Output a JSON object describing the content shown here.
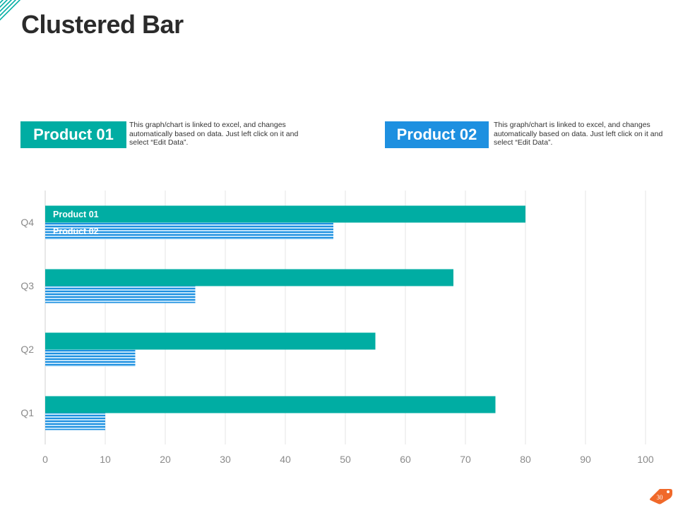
{
  "page": {
    "title": "Clustered Bar",
    "page_number": "30"
  },
  "colors": {
    "teal": "#00ADA3",
    "blue": "#1E90E0",
    "stripe_light": "#BFE3FA",
    "grid": "#E6E6E6",
    "badge": "#F0692A"
  },
  "legend": {
    "product_01": {
      "label": "Product 01",
      "description": "This graph/chart is linked to excel, and changes automatically based on data. Just left click on it and select “Edit Data”."
    },
    "product_02": {
      "label": "Product 02",
      "description": "This graph/chart is linked to excel, and changes automatically based on data. Just left click on it and select “Edit Data”."
    }
  },
  "chart_data": {
    "type": "bar",
    "orientation": "horizontal",
    "categories": [
      "Q1",
      "Q2",
      "Q3",
      "Q4"
    ],
    "series": [
      {
        "name": "Product 01",
        "values": [
          75,
          55,
          68,
          80
        ]
      },
      {
        "name": "Product 02",
        "values": [
          10,
          15,
          25,
          48
        ]
      }
    ],
    "xlim": [
      0,
      100
    ],
    "xticks": [
      0,
      10,
      20,
      30,
      40,
      50,
      60,
      70,
      80,
      90,
      100
    ],
    "grid": true,
    "data_labels_on": "Q4"
  }
}
